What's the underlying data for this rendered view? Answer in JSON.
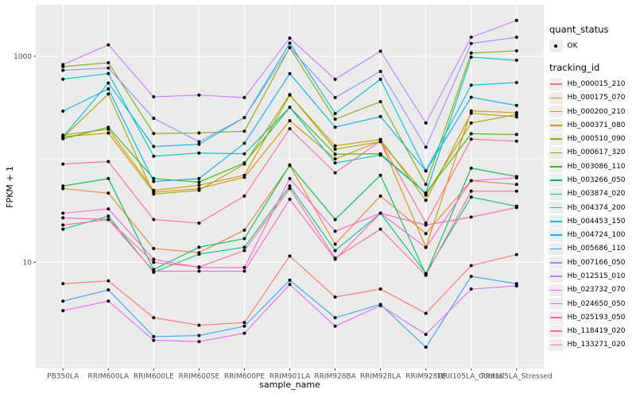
{
  "chart_data": {
    "type": "line",
    "title": "",
    "xlabel": "sample_name",
    "ylabel": "FPKM + 1",
    "y_scale": "log10",
    "ylim": [
      1,
      3162
    ],
    "grid": true,
    "legend_position": "right",
    "marker": "black-point",
    "y_ticks": [
      {
        "value": 10,
        "label": "10"
      },
      {
        "value": 1000,
        "label": "1000"
      }
    ],
    "y_minor_gridlines": [
      1,
      100
    ],
    "categories": [
      "PB350LA",
      "RRIM600LA",
      "RRIM600LE",
      "RRIM600SE",
      "RRIM600PE",
      "RRIM901LA",
      "RRIM928BA",
      "RRIM928LA",
      "RRIM928LE",
      "RRII105LA_Control",
      "RRII105LA_Stressed"
    ],
    "series": [
      {
        "name": "Hb_000015_210",
        "color": "#F8766D",
        "values": [
          6.2,
          6.6,
          2.9,
          2.45,
          2.6,
          11.5,
          4.6,
          5.5,
          3.2,
          9.3,
          11.9
        ]
      },
      {
        "name": "Hb_000175_070",
        "color": "#EA8331",
        "values": [
          52,
          47,
          13.6,
          12.4,
          20.5,
          87,
          15,
          44,
          19,
          62,
          57
        ]
      },
      {
        "name": "Hb_000200_210",
        "color": "#D89000",
        "values": [
          166,
          180,
          48,
          52,
          67,
          237,
          101,
          150,
          14,
          295,
          283
        ]
      },
      {
        "name": "Hb_000371_080",
        "color": "#C09B00",
        "values": [
          172,
          196,
          50,
          56,
          70,
          420,
          135,
          156,
          40,
          280,
          258
        ]
      },
      {
        "name": "Hb_000510_090",
        "color": "#A3A500",
        "values": [
          163,
          430,
          46,
          50,
          90,
          425,
          125,
          148,
          45,
          225,
          272
        ]
      },
      {
        "name": "Hb_000617_320",
        "color": "#7CAE00",
        "values": [
          794,
          866,
          178,
          180,
          187,
          1215,
          245,
          363,
          57,
          1075,
          1130
        ]
      },
      {
        "name": "Hb_003086_110",
        "color": "#39B600",
        "values": [
          158,
          205,
          65,
          60,
          92,
          320,
          112,
          113,
          47,
          177,
          174
        ]
      },
      {
        "name": "Hb_003266_050",
        "color": "#00BB4E",
        "values": [
          55,
          65,
          8.5,
          14,
          17,
          88,
          26,
          70,
          7.6,
          82,
          68
        ]
      },
      {
        "name": "Hb_003874_020",
        "color": "#00C087",
        "values": [
          21,
          28,
          8.0,
          12,
          14,
          55,
          13,
          30,
          7.8,
          43,
          35
        ]
      },
      {
        "name": "Hb_004374_200",
        "color": "#00C0B8",
        "values": [
          600,
          680,
          107,
          115,
          113,
          320,
          92,
          110,
          47,
          980,
          915
        ]
      },
      {
        "name": "Hb_004453_150",
        "color": "#00BCD8",
        "values": [
          165,
          550,
          133,
          140,
          254,
          1340,
          278,
          597,
          77,
          525,
          555
        ]
      },
      {
        "name": "Hb_004724_100",
        "color": "#00B0F6",
        "values": [
          293,
          483,
          61,
          65,
          143,
          677,
          205,
          260,
          77,
          400,
          333
        ]
      },
      {
        "name": "Hb_005686_110",
        "color": "#35A2FF",
        "values": [
          4.2,
          5.4,
          1.9,
          1.95,
          2.4,
          6.7,
          2.9,
          3.9,
          1.5,
          7.3,
          6.2
        ]
      },
      {
        "name": "Hb_007166_050",
        "color": "#9590FF",
        "values": [
          730,
          770,
          250,
          148,
          254,
          1210,
          397,
          713,
          131,
          1330,
          1530
        ]
      },
      {
        "name": "Hb_012515_010",
        "color": "#C77CFF",
        "values": [
          830,
          1290,
          404,
          420,
          397,
          1500,
          597,
          1120,
          225,
          1530,
          2230
        ]
      },
      {
        "name": "Hb_023732_070",
        "color": "#E76BF3",
        "values": [
          3.4,
          4.2,
          1.75,
          1.7,
          2.05,
          6.1,
          2.4,
          3.8,
          2.0,
          5.5,
          5.9
        ]
      },
      {
        "name": "Hb_024650_050",
        "color": "#FA62DB",
        "values": [
          30,
          33,
          10.7,
          8.9,
          8.9,
          65,
          20,
          30,
          13.9,
          62,
          66
        ]
      },
      {
        "name": "Hb_025193_050",
        "color": "#FF62BC",
        "values": [
          27,
          26,
          8.2,
          8.2,
          8.2,
          41,
          10.7,
          30,
          23,
          27.5,
          34
        ]
      },
      {
        "name": "Hb_118419_020",
        "color": "#FF6A98",
        "values": [
          90,
          95,
          26,
          24,
          44,
          198,
          74,
          150,
          24,
          157,
          150
        ]
      },
      {
        "name": "Hb_133271_020",
        "color": "#FD6F88",
        "values": [
          23,
          26,
          10,
          9,
          13,
          52,
          11,
          21,
          7.5,
          49,
          49
        ]
      }
    ]
  },
  "legend": {
    "quant_status_title": "quant_status",
    "quant_status_items": [
      "OK"
    ],
    "tracking_id_title": "tracking_id"
  },
  "colors": {
    "panel_background": "#EBEBEB",
    "gridline_major": "#FFFFFF",
    "gridline_minor": "#FFFFFF",
    "axis_text": "#4D4D4D",
    "tick_mark": "#333333",
    "point": "#000000",
    "legend_key_background": "#EDEDED"
  }
}
